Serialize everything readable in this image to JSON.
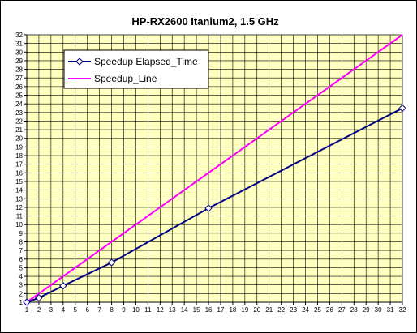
{
  "chart_data": {
    "type": "line",
    "title": "HP-RX2600 Itanium2, 1.5 GHz",
    "xlabel": "",
    "ylabel": "",
    "xlim": [
      1,
      32
    ],
    "ylim": [
      1,
      32
    ],
    "x_ticks": [
      1,
      2,
      3,
      4,
      5,
      6,
      7,
      8,
      9,
      10,
      11,
      12,
      13,
      14,
      15,
      16,
      17,
      18,
      19,
      20,
      21,
      22,
      23,
      24,
      25,
      26,
      27,
      28,
      29,
      30,
      31,
      32
    ],
    "y_ticks": [
      1,
      2,
      3,
      4,
      5,
      6,
      7,
      8,
      9,
      10,
      11,
      12,
      13,
      14,
      15,
      16,
      17,
      18,
      19,
      20,
      21,
      22,
      23,
      24,
      25,
      26,
      27,
      28,
      29,
      30,
      31,
      32
    ],
    "grid": true,
    "plot_background": "#ffffc0",
    "legend_position": "top-left",
    "series": [
      {
        "name": "Speedup Elapsed_Time",
        "color": "#000080",
        "marker": "diamond",
        "x": [
          1,
          2,
          4,
          8,
          16,
          32
        ],
        "y": [
          1,
          1.5,
          2.9,
          5.6,
          11.9,
          23.5
        ]
      },
      {
        "name": "Speedup_Line",
        "color": "#ff00ff",
        "marker": "none",
        "x": [
          1,
          32
        ],
        "y": [
          1,
          32
        ]
      }
    ]
  }
}
